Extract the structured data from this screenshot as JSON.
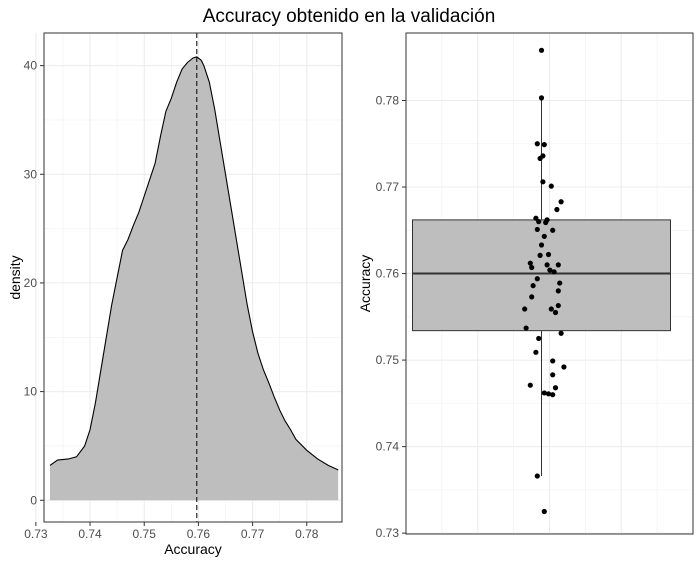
{
  "figure": {
    "title": "Accuracy obtenido en la validación"
  },
  "chart_data": [
    {
      "type": "area",
      "subtype": "density",
      "xlabel": "Accuracy",
      "ylabel": "density",
      "xlim": [
        0.7315,
        0.7865
      ],
      "ylim": [
        -2,
        43
      ],
      "x_ticks": [
        0.73,
        0.74,
        0.75,
        0.76,
        0.77,
        0.78
      ],
      "x_tick_labels": [
        "0.73",
        "0.74",
        "0.75",
        "0.76",
        "0.77",
        "0.78"
      ],
      "y_ticks": [
        0,
        10,
        20,
        30,
        40
      ],
      "y_tick_labels": [
        "0",
        "10",
        "20",
        "30",
        "40"
      ],
      "mean_line": 0.7597,
      "fill_color": "#bebebe",
      "grid": true,
      "curve": {
        "x": [
          0.7326,
          0.734,
          0.736,
          0.7375,
          0.739,
          0.74,
          0.741,
          0.742,
          0.743,
          0.744,
          0.745,
          0.746,
          0.747,
          0.748,
          0.749,
          0.75,
          0.751,
          0.752,
          0.753,
          0.754,
          0.755,
          0.756,
          0.757,
          0.758,
          0.759,
          0.7597,
          0.7605,
          0.761,
          0.762,
          0.763,
          0.764,
          0.765,
          0.766,
          0.767,
          0.768,
          0.769,
          0.77,
          0.771,
          0.772,
          0.773,
          0.774,
          0.775,
          0.776,
          0.777,
          0.778,
          0.78,
          0.782,
          0.784,
          0.7858
        ],
        "y": [
          3.2,
          3.7,
          3.8,
          4.0,
          5.0,
          6.5,
          9.0,
          12.0,
          15.0,
          18.0,
          20.5,
          23.0,
          24.0,
          25.3,
          26.5,
          28.0,
          29.5,
          31.0,
          33.5,
          35.8,
          37.0,
          38.5,
          39.7,
          40.3,
          40.7,
          40.8,
          40.5,
          40.0,
          38.5,
          36.0,
          33.0,
          30.0,
          27.0,
          24.0,
          21.0,
          18.0,
          15.5,
          13.5,
          12.0,
          10.8,
          9.5,
          8.3,
          7.3,
          6.5,
          5.6,
          4.6,
          3.8,
          3.2,
          2.8
        ]
      }
    },
    {
      "type": "scatter",
      "subtype": "boxplot-with-jitter",
      "xlabel": "",
      "ylabel": "Accuracy",
      "ylim": [
        0.7299,
        0.7878
      ],
      "y_ticks": [
        0.73,
        0.74,
        0.75,
        0.76,
        0.77,
        0.78
      ],
      "y_tick_labels": [
        "0.73",
        "0.74",
        "0.75",
        "0.76",
        "0.77",
        "0.78"
      ],
      "fill_color": "#bebebe",
      "grid": true,
      "box": {
        "q1": 0.7534,
        "median": 0.76,
        "q3": 0.7662,
        "whisker_low": 0.7366,
        "whisker_high": 0.7803
      },
      "points": [
        {
          "x": 0.0,
          "y": 0.7858
        },
        {
          "x": 0.0,
          "y": 0.7803
        },
        {
          "x": -0.03,
          "y": 0.775
        },
        {
          "x": 0.02,
          "y": 0.7749
        },
        {
          "x": -0.01,
          "y": 0.7733
        },
        {
          "x": 0.01,
          "y": 0.7736
        },
        {
          "x": 0.01,
          "y": 0.7706
        },
        {
          "x": 0.07,
          "y": 0.7701
        },
        {
          "x": 0.14,
          "y": 0.7683
        },
        {
          "x": 0.11,
          "y": 0.7674
        },
        {
          "x": -0.04,
          "y": 0.7664
        },
        {
          "x": 0.04,
          "y": 0.7662
        },
        {
          "x": -0.02,
          "y": 0.766
        },
        {
          "x": 0.03,
          "y": 0.7659
        },
        {
          "x": -0.03,
          "y": 0.7651
        },
        {
          "x": 0.08,
          "y": 0.765
        },
        {
          "x": 0.02,
          "y": 0.7643
        },
        {
          "x": 0.0,
          "y": 0.7633
        },
        {
          "x": 0.05,
          "y": 0.7622
        },
        {
          "x": -0.01,
          "y": 0.7621
        },
        {
          "x": -0.08,
          "y": 0.7612
        },
        {
          "x": 0.04,
          "y": 0.761
        },
        {
          "x": 0.12,
          "y": 0.761
        },
        {
          "x": -0.07,
          "y": 0.7607
        },
        {
          "x": 0.06,
          "y": 0.7604
        },
        {
          "x": 0.09,
          "y": 0.7602
        },
        {
          "x": -0.03,
          "y": 0.7594
        },
        {
          "x": 0.13,
          "y": 0.7589
        },
        {
          "x": -0.06,
          "y": 0.7586
        },
        {
          "x": 0.12,
          "y": 0.758
        },
        {
          "x": -0.07,
          "y": 0.7573
        },
        {
          "x": 0.12,
          "y": 0.7563
        },
        {
          "x": 0.07,
          "y": 0.7559
        },
        {
          "x": -0.12,
          "y": 0.7559
        },
        {
          "x": 0.1,
          "y": 0.7555
        },
        {
          "x": -0.11,
          "y": 0.7537
        },
        {
          "x": 0.14,
          "y": 0.7531
        },
        {
          "x": -0.02,
          "y": 0.7525
        },
        {
          "x": -0.04,
          "y": 0.7509
        },
        {
          "x": 0.08,
          "y": 0.7499
        },
        {
          "x": 0.16,
          "y": 0.7492
        },
        {
          "x": 0.08,
          "y": 0.7483
        },
        {
          "x": -0.08,
          "y": 0.7471
        },
        {
          "x": 0.1,
          "y": 0.7468
        },
        {
          "x": 0.02,
          "y": 0.7462
        },
        {
          "x": 0.05,
          "y": 0.7461
        },
        {
          "x": 0.08,
          "y": 0.746
        },
        {
          "x": -0.03,
          "y": 0.7366
        },
        {
          "x": 0.02,
          "y": 0.7325
        }
      ]
    }
  ]
}
